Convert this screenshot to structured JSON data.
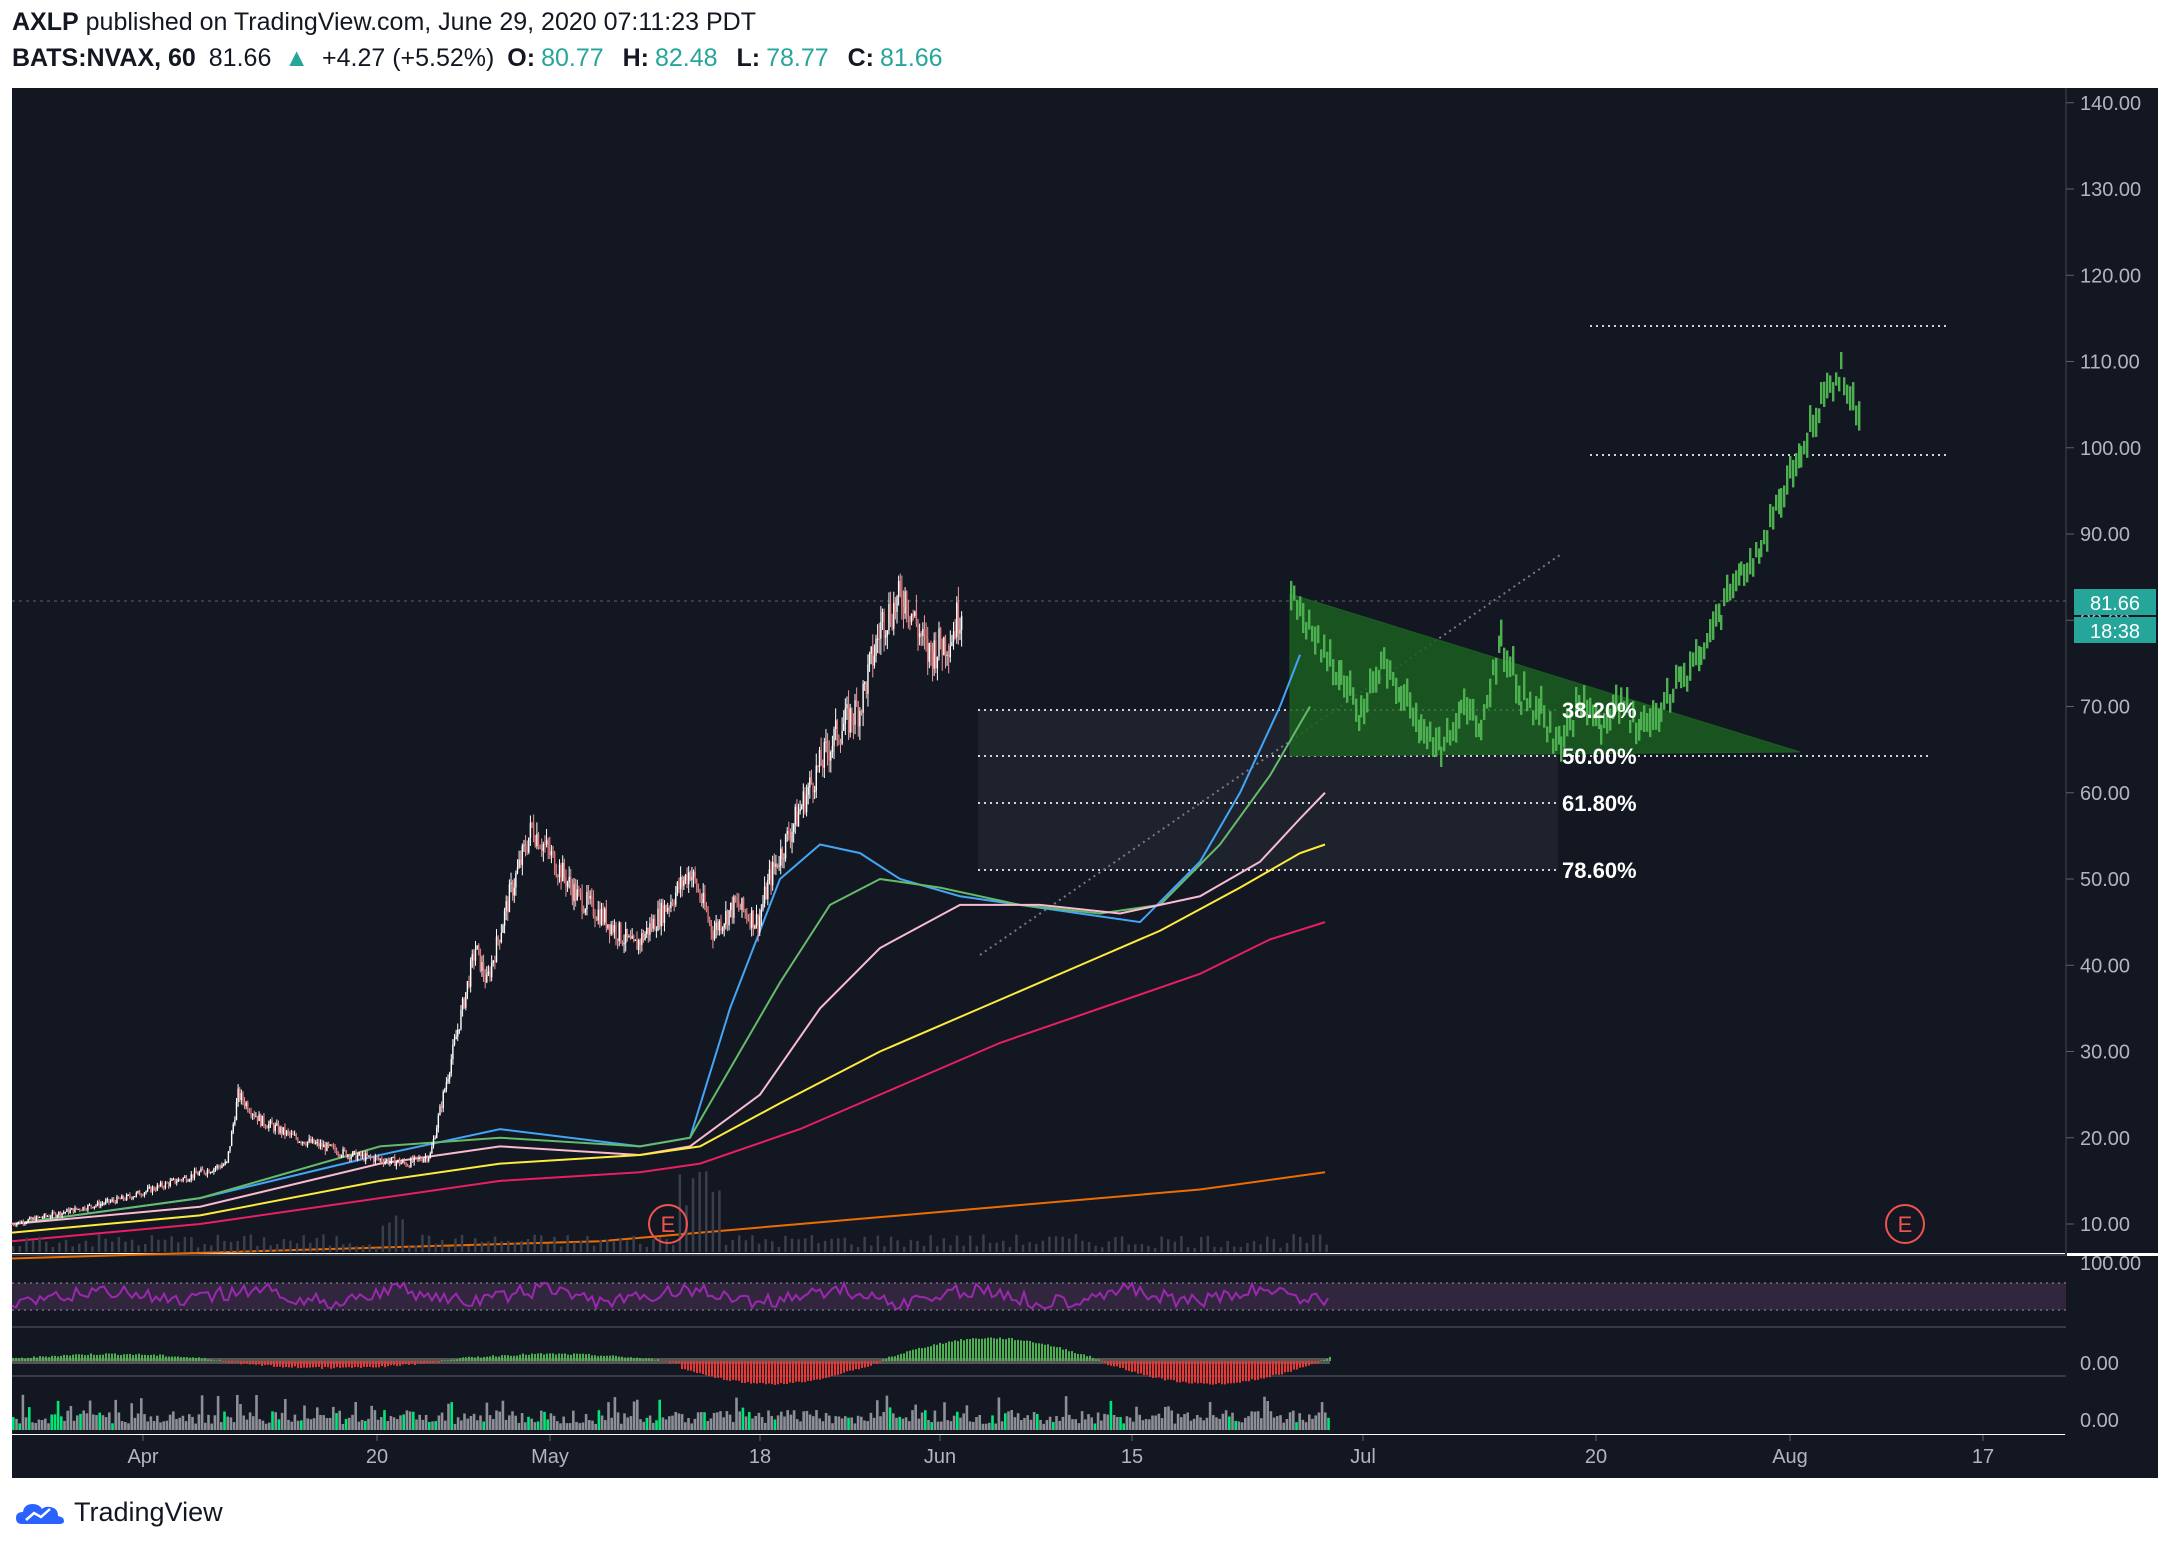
{
  "header": {
    "author": "AXLP",
    "published": "published on TradingView.com, June 29, 2020 07:11:23 PDT",
    "symbol": "BATS:NVAX, 60",
    "last": "81.66",
    "change": "+4.27 (+5.52%)",
    "open_label": "O:",
    "open": "80.77",
    "high_label": "H:",
    "high": "82.48",
    "low_label": "L:",
    "low": "78.77",
    "close_label": "C:",
    "close": "81.66"
  },
  "price_badge": "81.66",
  "countdown_badge": "18:38",
  "earnings_marker": "E",
  "fib_levels": [
    "38.20%",
    "50.00%",
    "61.80%",
    "78.60%"
  ],
  "indicator_axis": {
    "rsi_max": "100.00",
    "pane2_zero": "0.00",
    "pane3_zero": "0.00"
  },
  "footer": {
    "brand": "TradingView"
  },
  "colors": {
    "background": "#131722",
    "up": "#26a69a",
    "projection": "#4caf50",
    "ema_fast": "#42a5f5",
    "ema_mid": "#66bb6a",
    "ema_pink": "#f8bbd0",
    "ema_yellow": "#ffeb3b",
    "ema_red": "#e91e63",
    "ema_orange": "#ef6c00",
    "rsi": "#9c27b0"
  },
  "chart_data": {
    "type": "candlestick",
    "title": "",
    "ylabel": "",
    "yaxis_ticks": [
      "140.00",
      "130.00",
      "120.00",
      "110.00",
      "100.00",
      "90.00",
      "80.00",
      "70.00",
      "60.00",
      "50.00",
      "40.00",
      "30.00",
      "20.00",
      "10.00"
    ],
    "xaxis_ticks": [
      "Apr",
      "20",
      "May",
      "18",
      "Jun",
      "15",
      "Jul",
      "20",
      "Aug",
      "17"
    ],
    "ylim": [
      5,
      140
    ],
    "grid": false,
    "last_price": 81.66,
    "price_path": {
      "x_day_index": [
        0,
        10,
        19,
        20,
        22,
        25,
        30,
        35,
        37,
        39,
        41,
        42,
        44,
        46,
        48,
        50,
        52,
        55,
        58,
        60,
        62,
        64,
        66,
        67,
        69,
        71,
        73,
        75,
        77,
        79,
        81,
        83,
        84
      ],
      "y": [
        10,
        13,
        17,
        25,
        22,
        20,
        18,
        17,
        18,
        30,
        42,
        38,
        48,
        56,
        52,
        48,
        46,
        42,
        47,
        51,
        44,
        47,
        45,
        50,
        56,
        62,
        67,
        70,
        80,
        83,
        76,
        78,
        81.66
      ]
    },
    "fibonacci_retracement": [
      {
        "label": "38.20%",
        "value": 68.5
      },
      {
        "label": "50.00%",
        "value": 63.5
      },
      {
        "label": "61.80%",
        "value": 58.3
      },
      {
        "label": "78.60%",
        "value": 50.4
      }
    ],
    "projection_targets": [
      113.5,
      98.5
    ],
    "descending_triangle": {
      "apex_high": 82,
      "base": 64
    },
    "moving_averages": [
      "ema_fast",
      "ema_mid",
      "ema_pink",
      "ema_yellow",
      "ema_red",
      "ema_orange"
    ],
    "panes": [
      "price",
      "rsi",
      "momentum_histogram",
      "volume_histogram"
    ]
  }
}
